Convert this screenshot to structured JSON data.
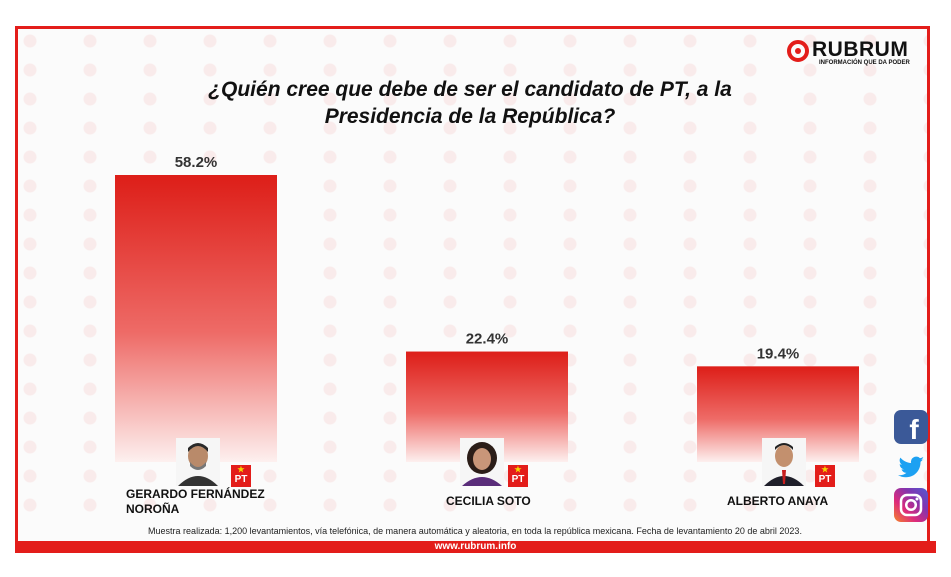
{
  "title_line1": "¿Quién cree que debe de ser el candidato de PT, a la",
  "title_line2": "Presidencia de la República?",
  "brand": {
    "name": "RUBRUM",
    "tagline": "INFORMACIÓN QUE DA PODER"
  },
  "party_label": "PT",
  "colors": {
    "accent": "#e31d1a",
    "bar_top": "#e0201b"
  },
  "chart_data": {
    "type": "bar",
    "title": "¿Quién cree que debe de ser el candidato de PT, a la Presidencia de la República?",
    "categories": [
      "GERARDO FERNÁNDEZ NOROÑA",
      "CECILIA SOTO",
      "ALBERTO ANAYA"
    ],
    "values": [
      58.2,
      22.4,
      19.4
    ],
    "value_labels": [
      "58.2%",
      "22.4%",
      "19.4%"
    ],
    "unit": "%",
    "ylim": [
      0,
      58.2
    ],
    "grid": false,
    "legend": "none"
  },
  "candidates": [
    {
      "name_line1": "GERARDO FERNÁNDEZ",
      "name_line2": "NOROÑA"
    },
    {
      "name_line1": "CECILIA SOTO",
      "name_line2": ""
    },
    {
      "name_line1": "ALBERTO ANAYA",
      "name_line2": ""
    }
  ],
  "note": "Muestra realizada: 1,200 levantamientos, vía telefónica, de manera automática y aleatoria, en toda la república mexicana. Fecha de levantamiento 20 de abril 2023.",
  "footer_url": "www.rubrum.info",
  "social": [
    {
      "icon": "facebook-icon",
      "glyph": "f"
    },
    {
      "icon": "twitter-icon",
      "glyph": "🐦"
    },
    {
      "icon": "instagram-icon",
      "glyph": "◎"
    }
  ]
}
